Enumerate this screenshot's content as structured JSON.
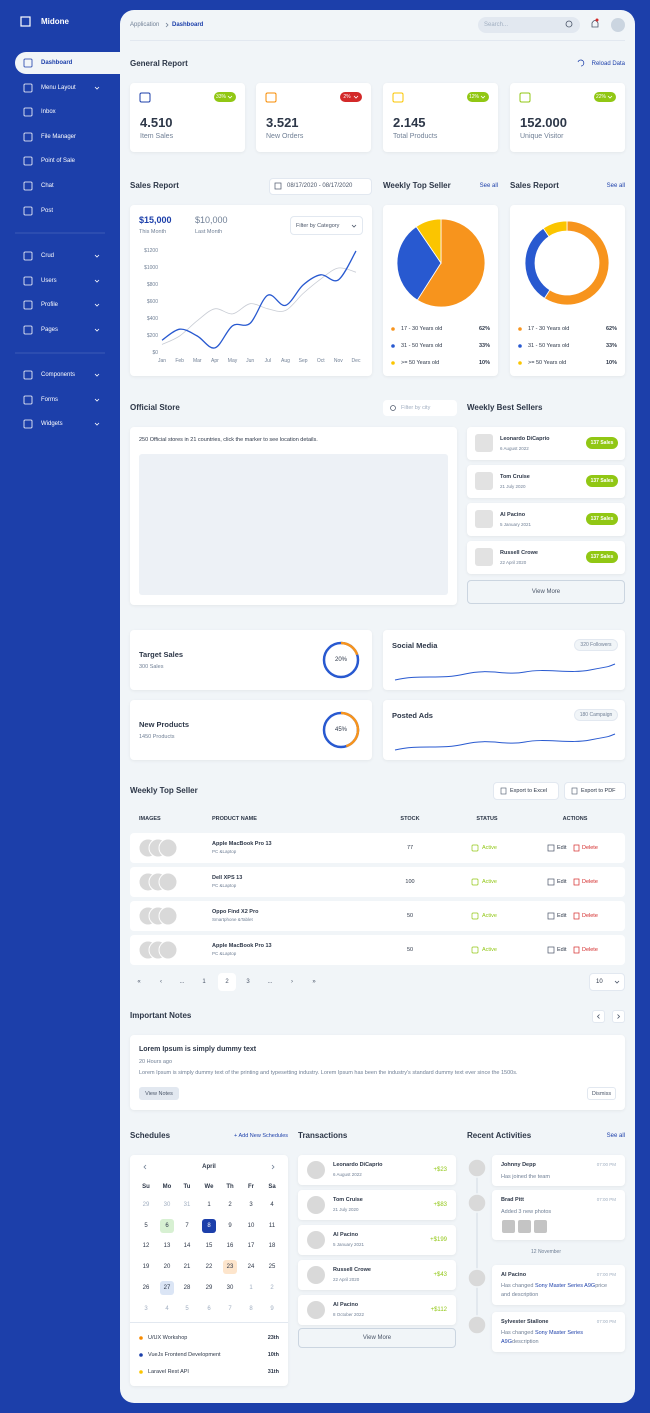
{
  "sidebar": {
    "brand": "Midone",
    "groups": [
      [
        {
          "label": "Dashboard",
          "active": true,
          "submenu": false
        },
        {
          "label": "Menu Layout",
          "submenu": true
        },
        {
          "label": "Inbox",
          "submenu": false
        },
        {
          "label": "File Manager",
          "submenu": false
        },
        {
          "label": "Point of Sale",
          "submenu": false
        },
        {
          "label": "Chat",
          "submenu": false
        },
        {
          "label": "Post",
          "submenu": false
        }
      ],
      [
        {
          "label": "Crud",
          "submenu": true
        },
        {
          "label": "Users",
          "submenu": true
        },
        {
          "label": "Profile",
          "submenu": true
        },
        {
          "label": "Pages",
          "submenu": true
        }
      ],
      [
        {
          "label": "Components",
          "submenu": true
        },
        {
          "label": "Forms",
          "submenu": true
        },
        {
          "label": "Widgets",
          "submenu": true
        }
      ]
    ]
  },
  "topbar": {
    "breadcrumb": [
      "Application",
      "Dashboard"
    ],
    "search_placeholder": "Search..."
  },
  "general_report": {
    "title": "General Report",
    "action": "Reload Data",
    "cards": [
      {
        "value": "4.510",
        "label": "Item Sales",
        "change": "33%",
        "trend": "up",
        "color": "#1c3faa"
      },
      {
        "value": "3.521",
        "label": "New Orders",
        "change": "2%",
        "trend": "down",
        "color": "#f78b00"
      },
      {
        "value": "2.145",
        "label": "Total Products",
        "change": "12%",
        "trend": "up",
        "color": "#fbc500"
      },
      {
        "value": "152.000",
        "label": "Unique Visitor",
        "change": "22%",
        "trend": "up",
        "color": "#91c714"
      }
    ]
  },
  "sales_report": {
    "title": "Sales Report",
    "date_range": "08/17/2020 - 08/17/2020",
    "this_month_value": "$15,000",
    "this_month_label": "This Month",
    "last_month_value": "$10,000",
    "last_month_label": "Last Month",
    "filter": "Filter by Category",
    "chart": {
      "type": "line",
      "categories": [
        "Jan",
        "Feb",
        "Mar",
        "Apr",
        "May",
        "Jun",
        "Jul",
        "Aug",
        "Sep",
        "Oct",
        "Nov",
        "Dec"
      ],
      "series": [
        {
          "values": [
            150,
            280,
            200,
            60,
            320,
            350,
            680,
            560,
            800,
            920,
            860,
            1200
          ],
          "color": "#2859d0"
        },
        {
          "values": [
            100,
            200,
            380,
            520,
            460,
            580,
            520,
            500,
            700,
            870,
            1000,
            950
          ],
          "color": "#c8ccd4"
        }
      ],
      "ylim": [
        0,
        1200
      ],
      "yticks": [
        {
          "value": 0,
          "label": "$0"
        },
        {
          "value": 200,
          "label": "$200"
        },
        {
          "value": 400,
          "label": "$400"
        },
        {
          "value": 600,
          "label": "$600"
        },
        {
          "value": 800,
          "label": "$800"
        },
        {
          "value": 1000,
          "label": "$1000"
        },
        {
          "value": 1200,
          "label": "$1200"
        }
      ],
      "grid": false
    }
  },
  "weekly_top_seller_chart": {
    "title": "Weekly Top Seller",
    "action": "See all",
    "chart": {
      "type": "pie",
      "categories": [
        "17 - 30 Years old",
        "31 - 50 Years old",
        ">= 50 Years old"
      ],
      "values": [
        62,
        33,
        10
      ],
      "value_labels": [
        "62%",
        "33%",
        "10%"
      ],
      "colors": [
        "#f7941d",
        "#2859d0",
        "#fbc500"
      ]
    }
  },
  "sales_report_chart": {
    "title": "Sales Report",
    "action": "See all",
    "chart": {
      "type": "donut",
      "categories": [
        "17 - 30 Years old",
        "31 - 50 Years old",
        ">= 50 Years old"
      ],
      "values": [
        62,
        33,
        10
      ],
      "value_labels": [
        "62%",
        "33%",
        "10%"
      ],
      "colors": [
        "#f7941d",
        "#2859d0",
        "#fbc500"
      ]
    }
  },
  "official_store": {
    "title": "Official Store",
    "filter_placeholder": "Filter by city",
    "description": "250 Official stores in 21 countries, click the marker to see location details."
  },
  "weekly_best_sellers": {
    "title": "Weekly Best Sellers",
    "items": [
      {
        "name": "Leonardo DiCaprio",
        "date": "6 August 2022",
        "badge": "137 Sales"
      },
      {
        "name": "Tom Cruise",
        "date": "21 July 2020",
        "badge": "137 Sales"
      },
      {
        "name": "Al Pacino",
        "date": "5 January 2021",
        "badge": "137 Sales"
      },
      {
        "name": "Russell Crowe",
        "date": "22 April 2020",
        "badge": "137 Sales"
      }
    ],
    "button": "View More"
  },
  "stats": [
    {
      "title": "Target Sales",
      "subtitle": "300 Sales",
      "percent": 20,
      "percent_label": "20%"
    },
    {
      "title": "New Products",
      "subtitle": "1450 Products",
      "percent": 45,
      "percent_label": "45%"
    }
  ],
  "social": [
    {
      "title": "Social Media",
      "badge": "320 Followers"
    },
    {
      "title": "Posted Ads",
      "badge": "180 Campaign"
    }
  ],
  "products_table": {
    "title": "Weekly Top Seller",
    "buttons": [
      "Export to Excel",
      "Export to PDF"
    ],
    "headers": [
      "IMAGES",
      "PRODUCT NAME",
      "STOCK",
      "STATUS",
      "ACTIONS"
    ],
    "rows": [
      {
        "product": "Apple MacBook Pro 13",
        "category": "PC &Laptop",
        "stock": "77",
        "status": "Active"
      },
      {
        "product": "Dell XPS 13",
        "category": "PC &Laptop",
        "stock": "100",
        "status": "Active"
      },
      {
        "product": "Oppo Find X2 Pro",
        "category": "Smartphone &Tablet",
        "stock": "50",
        "status": "Active"
      },
      {
        "product": "Apple MacBook Pro 13",
        "category": "PC &Laptop",
        "stock": "50",
        "status": "Active"
      }
    ],
    "actions": [
      "Edit",
      "Delete"
    ]
  },
  "pagination": {
    "pages": [
      {
        "label": "«"
      },
      {
        "label": "‹"
      },
      {
        "label": "..."
      },
      {
        "label": "1"
      },
      {
        "label": "2",
        "active": true
      },
      {
        "label": "3"
      },
      {
        "label": "..."
      },
      {
        "label": "›"
      },
      {
        "label": "»"
      }
    ],
    "page_size": "10"
  },
  "notes": {
    "title": "Important Notes",
    "item": {
      "title": "Lorem Ipsum is simply dummy text",
      "time": "20 Hours ago",
      "text": "Lorem Ipsum is simply dummy text of the printing and typesetting industry. Lorem Ipsum has been the industry's standard dummy text ever since the 1500s."
    },
    "buttons": [
      "View Notes",
      "Dismiss"
    ]
  },
  "schedules": {
    "title": "Schedules",
    "action": "+ Add New Schedules",
    "calendar": {
      "month": "April",
      "weekdays": [
        "Su",
        "Mo",
        "Tu",
        "We",
        "Th",
        "Fr",
        "Sa"
      ],
      "days": [
        {
          "label": "29",
          "muted": true
        },
        {
          "label": "30",
          "muted": true
        },
        {
          "label": "31",
          "muted": true
        },
        {
          "label": "1"
        },
        {
          "label": "2"
        },
        {
          "label": "3"
        },
        {
          "label": "4"
        },
        {
          "label": "5"
        },
        {
          "label": "6",
          "style": "success"
        },
        {
          "label": "7"
        },
        {
          "label": "8",
          "style": "primary"
        },
        {
          "label": "9"
        },
        {
          "label": "10"
        },
        {
          "label": "11"
        },
        {
          "label": "12"
        },
        {
          "label": "13"
        },
        {
          "label": "14"
        },
        {
          "label": "15"
        },
        {
          "label": "16"
        },
        {
          "label": "17"
        },
        {
          "label": "18"
        },
        {
          "label": "19"
        },
        {
          "label": "20"
        },
        {
          "label": "21"
        },
        {
          "label": "22"
        },
        {
          "label": "23",
          "style": "warning"
        },
        {
          "label": "24"
        },
        {
          "label": "25"
        },
        {
          "label": "26"
        },
        {
          "label": "27",
          "style": "info"
        },
        {
          "label": "28"
        },
        {
          "label": "29"
        },
        {
          "label": "30"
        },
        {
          "label": "1",
          "muted": true
        },
        {
          "label": "2",
          "muted": true
        },
        {
          "label": "3",
          "muted": true
        },
        {
          "label": "4",
          "muted": true
        },
        {
          "label": "5",
          "muted": true
        },
        {
          "label": "6",
          "muted": true
        },
        {
          "label": "7",
          "muted": true
        },
        {
          "label": "8",
          "muted": true
        },
        {
          "label": "9",
          "muted": true
        }
      ]
    },
    "events": [
      {
        "name": "U/UX Workshop",
        "date": "23th",
        "color": "#f78b00"
      },
      {
        "name": "VueJs Frontend Development",
        "date": "10th",
        "color": "#1c3faa"
      },
      {
        "name": "Laravel Rest API",
        "date": "31th",
        "color": "#fbc500"
      }
    ]
  },
  "transactions": {
    "title": "Transactions",
    "items": [
      {
        "name": "Leonardo DiCaprio",
        "date": "6 August 2022",
        "amount": "+$23"
      },
      {
        "name": "Tom Cruise",
        "date": "21 July 2020",
        "amount": "+$83"
      },
      {
        "name": "Al Pacino",
        "date": "5 January 2021",
        "amount": "+$199"
      },
      {
        "name": "Russell Crowe",
        "date": "22 April 2020",
        "amount": "+$43"
      },
      {
        "name": "Al Pacino",
        "date": "8 October 2022",
        "amount": "+$112"
      }
    ],
    "button": "View More"
  },
  "recent_activities": {
    "title": "Recent Activities",
    "action": "See all",
    "separator": "12 November",
    "items": [
      {
        "name": "Johnny Depp",
        "time": "07:00 PM",
        "text": "Has joined the team"
      },
      {
        "name": "Brad Pitt",
        "time": "07:00 PM",
        "text": "Added 3 new photos"
      },
      {
        "name": "Al Pacino",
        "time": "07:00 PM",
        "text_before": "Has changed ",
        "link": "Sony Master Series A9G",
        "text_after": "price and description"
      },
      {
        "name": "Sylvester Stallone",
        "time": "07:00 PM",
        "text_before": "Has changed ",
        "link": "Sony Master Series A9G",
        "text_after": "description"
      }
    ]
  }
}
